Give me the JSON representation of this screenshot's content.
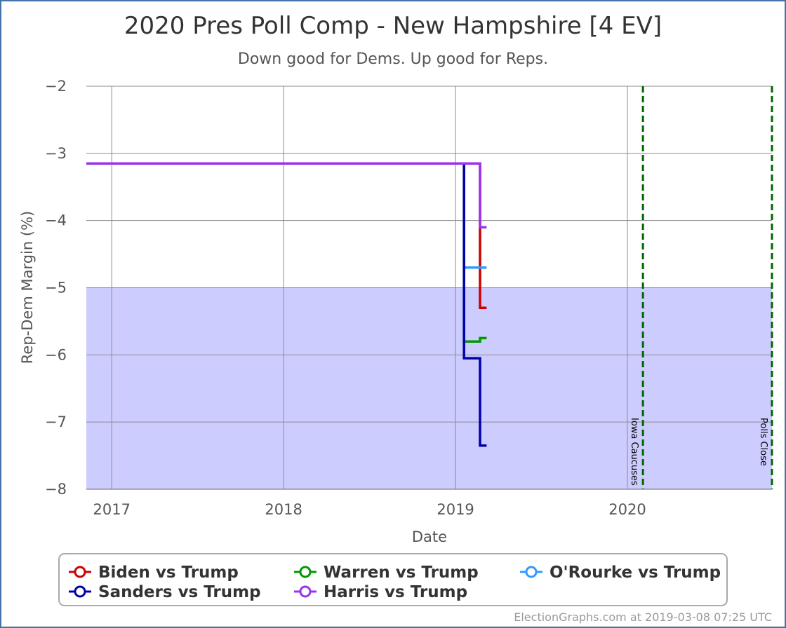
{
  "chart_data": {
    "type": "line",
    "title": "2020 Pres Poll Comp - New Hampshire [4 EV]",
    "subtitle": "Down good for Dems. Up good for Reps.",
    "xlabel": "Date",
    "ylabel": "Rep-Dem Margin (%)",
    "xlim": [
      "2016-11-08",
      "2020-11-03"
    ],
    "ylim": [
      -8,
      -2
    ],
    "ytick_values": [
      -2,
      -3,
      -4,
      -5,
      -6,
      -7,
      -8
    ],
    "ytick_labels": [
      "−2",
      "−3",
      "−4",
      "−5",
      "−6",
      "−7",
      "−8"
    ],
    "xticks": [
      {
        "date": "2017-01-01",
        "label": "2017"
      },
      {
        "date": "2018-01-01",
        "label": "2018"
      },
      {
        "date": "2019-01-01",
        "label": "2019"
      },
      {
        "date": "2020-01-01",
        "label": "2020"
      }
    ],
    "grid": true,
    "band": {
      "from": -8,
      "to": -5,
      "color": "#ccccff"
    },
    "plot_lines": [
      {
        "date": "2020-02-03",
        "label": "Iowa Caucuses",
        "color": "#006600"
      },
      {
        "date": "2020-11-03",
        "label": "Polls Close",
        "color": "#006600"
      }
    ],
    "series": [
      {
        "name": "Biden vs Trump",
        "color": "#cc0000",
        "points": [
          [
            "2016-11-08",
            -3.15
          ],
          [
            "2019-02-22",
            -3.15
          ],
          [
            "2019-02-22",
            -5.3
          ],
          [
            "2019-03-08",
            -5.3
          ]
        ]
      },
      {
        "name": "Warren vs Trump",
        "color": "#009900",
        "points": [
          [
            "2016-11-08",
            -3.15
          ],
          [
            "2019-01-19",
            -3.15
          ],
          [
            "2019-01-19",
            -5.8
          ],
          [
            "2019-02-22",
            -5.8
          ],
          [
            "2019-02-22",
            -5.75
          ],
          [
            "2019-03-08",
            -5.75
          ]
        ]
      },
      {
        "name": "O'Rourke vs Trump",
        "color": "#3399ff",
        "points": [
          [
            "2016-11-08",
            -3.15
          ],
          [
            "2019-01-19",
            -3.15
          ],
          [
            "2019-01-19",
            -4.7
          ],
          [
            "2019-03-08",
            -4.7
          ]
        ]
      },
      {
        "name": "Sanders vs Trump",
        "color": "#0000aa",
        "points": [
          [
            "2016-11-08",
            -3.15
          ],
          [
            "2019-01-19",
            -3.15
          ],
          [
            "2019-01-19",
            -6.05
          ],
          [
            "2019-02-22",
            -6.05
          ],
          [
            "2019-02-22",
            -7.35
          ],
          [
            "2019-03-08",
            -7.35
          ]
        ]
      },
      {
        "name": "Harris vs Trump",
        "color": "#9933ee",
        "points": [
          [
            "2016-11-08",
            -3.15
          ],
          [
            "2019-02-22",
            -3.15
          ],
          [
            "2019-02-22",
            -4.1
          ],
          [
            "2019-03-08",
            -4.1
          ]
        ]
      }
    ],
    "legend_position": "bottom"
  },
  "legend": {
    "biden": "Biden vs Trump",
    "warren": "Warren vs Trump",
    "orourke": "O'Rourke vs Trump",
    "sanders": "Sanders vs Trump",
    "harris": "Harris vs Trump"
  },
  "credit": "ElectionGraphs.com at 2019-03-08 07:25 UTC"
}
